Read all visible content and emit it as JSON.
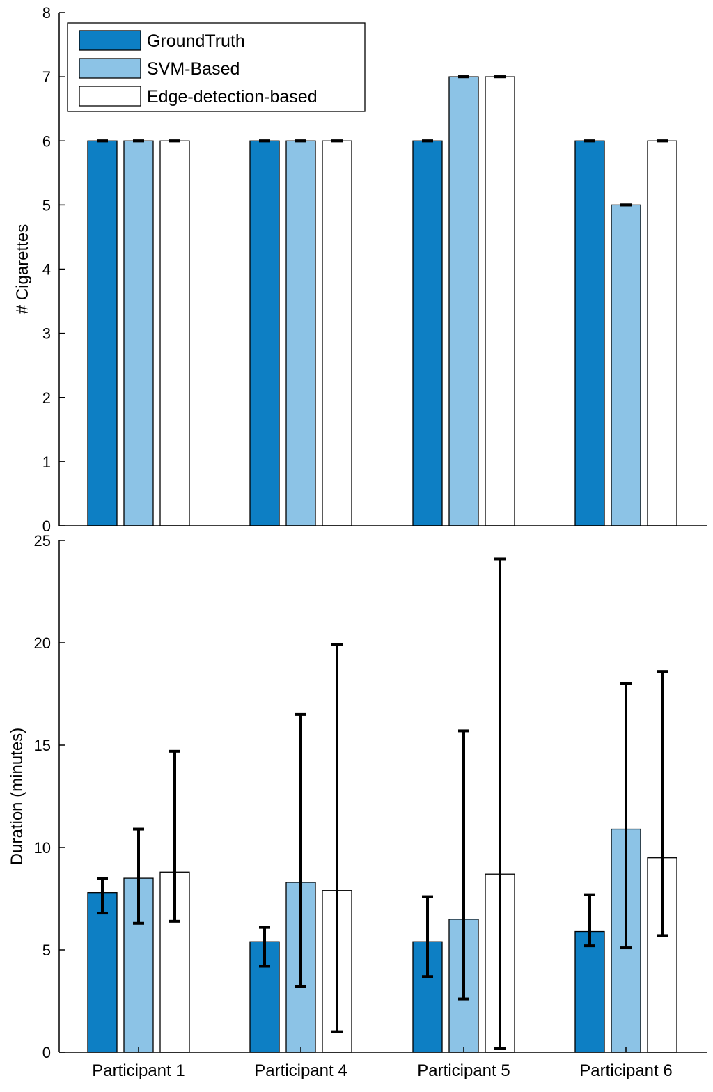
{
  "colors": {
    "groundtruth": "#0d7fc4",
    "svm": "#8cc3e6",
    "edge": "#ffffff",
    "axis": "#000000",
    "errorbar": "#000000"
  },
  "chart_data": [
    {
      "type": "bar",
      "title": "",
      "xlabel": "",
      "ylabel": "# Cigarettes",
      "ylim": [
        0,
        8
      ],
      "yticks": [
        "0",
        "1",
        "2",
        "3",
        "4",
        "5",
        "6",
        "7",
        "8"
      ],
      "categories": [
        "Participant 1",
        "Participant 4",
        "Participant 5",
        "Participant 6"
      ],
      "legend": "top-left",
      "grid": false,
      "series": [
        {
          "name": "GroundTruth",
          "values": [
            6,
            6,
            6,
            6
          ],
          "err_low": [
            6,
            6,
            6,
            6
          ],
          "err_high": [
            6,
            6,
            6,
            6
          ]
        },
        {
          "name": "SVM-Based",
          "values": [
            6,
            6,
            7,
            5
          ],
          "err_low": [
            6,
            6,
            7,
            5
          ],
          "err_high": [
            6,
            6,
            7,
            5
          ]
        },
        {
          "name": "Edge-detection-based",
          "values": [
            6,
            6,
            7,
            6
          ],
          "err_low": [
            6,
            6,
            7,
            6
          ],
          "err_high": [
            6,
            6,
            7,
            6
          ]
        }
      ]
    },
    {
      "type": "bar",
      "title": "",
      "xlabel": "",
      "ylabel": "Duration (minutes)",
      "ylim": [
        0,
        25
      ],
      "yticks": [
        "0",
        "5",
        "10",
        "15",
        "20",
        "25"
      ],
      "categories": [
        "Participant 1",
        "Participant 4",
        "Participant 5",
        "Participant 6"
      ],
      "grid": false,
      "series": [
        {
          "name": "GroundTruth",
          "values": [
            7.8,
            5.4,
            5.4,
            5.9
          ],
          "err_low": [
            6.8,
            4.2,
            3.7,
            5.2
          ],
          "err_high": [
            8.5,
            6.1,
            7.6,
            7.7
          ]
        },
        {
          "name": "SVM-Based",
          "values": [
            8.5,
            8.3,
            6.5,
            10.9
          ],
          "err_low": [
            6.3,
            3.2,
            2.6,
            5.1
          ],
          "err_high": [
            10.9,
            16.5,
            15.7,
            18.0
          ]
        },
        {
          "name": "Edge-detection-based",
          "values": [
            8.8,
            7.9,
            8.7,
            9.5
          ],
          "err_low": [
            6.4,
            1.0,
            0.2,
            5.7
          ],
          "err_high": [
            14.7,
            19.9,
            24.1,
            18.6
          ]
        }
      ]
    }
  ]
}
